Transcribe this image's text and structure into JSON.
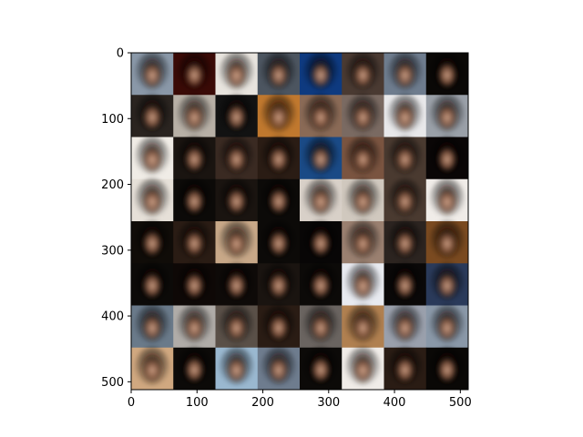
{
  "figure": {
    "image": {
      "description_icon": "face-grid-image",
      "rows": 8,
      "cols": 8,
      "pixel_extent": 512
    },
    "x_axis": {
      "ticks": [
        {
          "value": 0,
          "label": "0"
        },
        {
          "value": 100,
          "label": "100"
        },
        {
          "value": 200,
          "label": "200"
        },
        {
          "value": 300,
          "label": "300"
        },
        {
          "value": 400,
          "label": "400"
        },
        {
          "value": 500,
          "label": "500"
        }
      ]
    },
    "y_axis": {
      "ticks": [
        {
          "value": 0,
          "label": "0"
        },
        {
          "value": 100,
          "label": "100"
        },
        {
          "value": 200,
          "label": "200"
        },
        {
          "value": 300,
          "label": "300"
        },
        {
          "value": 400,
          "label": "400"
        },
        {
          "value": 500,
          "label": "500"
        }
      ]
    },
    "tiles": [
      [
        "#8a98a8",
        "#3a0a06",
        "#e8e4de",
        "#4c5560",
        "#0e3a80",
        "#4a3a32",
        "#6e7c8e",
        "#0a0806"
      ],
      [
        "#2a2420",
        "#b8b0a6",
        "#121212",
        "#c0782e",
        "#8a6a56",
        "#7a6a62",
        "#e8e8ea",
        "#9aa0a8"
      ],
      [
        "#f0ece6",
        "#1a1410",
        "#3a2a22",
        "#2a1c14",
        "#1a4a86",
        "#7a5440",
        "#4a3a30",
        "#0a0606"
      ],
      [
        "#e6e0d8",
        "#0c0a08",
        "#1a1410",
        "#0c0a08",
        "#d8d0c8",
        "#d0c8be",
        "#4a3a30",
        "#f0ece8"
      ],
      [
        "#100c08",
        "#2a1c14",
        "#c8a888",
        "#0c0a08",
        "#080606",
        "#9a8070",
        "#2c2420",
        "#7a4a20"
      ],
      [
        "#0c0a08",
        "#0e0806",
        "#0e0a08",
        "#1a1410",
        "#0c0a08",
        "#e8eaf0",
        "#0a0808",
        "#2a3a5a"
      ],
      [
        "#6a7a8a",
        "#b0aca8",
        "#5a5048",
        "#2a1c14",
        "#6a6460",
        "#b08050",
        "#9aa0ac",
        "#8a98a8"
      ],
      [
        "#d0a880",
        "#0c0a08",
        "#9ab8d0",
        "#6e7c8e",
        "#0c0a08",
        "#f0ece8",
        "#2a1c14",
        "#0a0806"
      ]
    ]
  }
}
